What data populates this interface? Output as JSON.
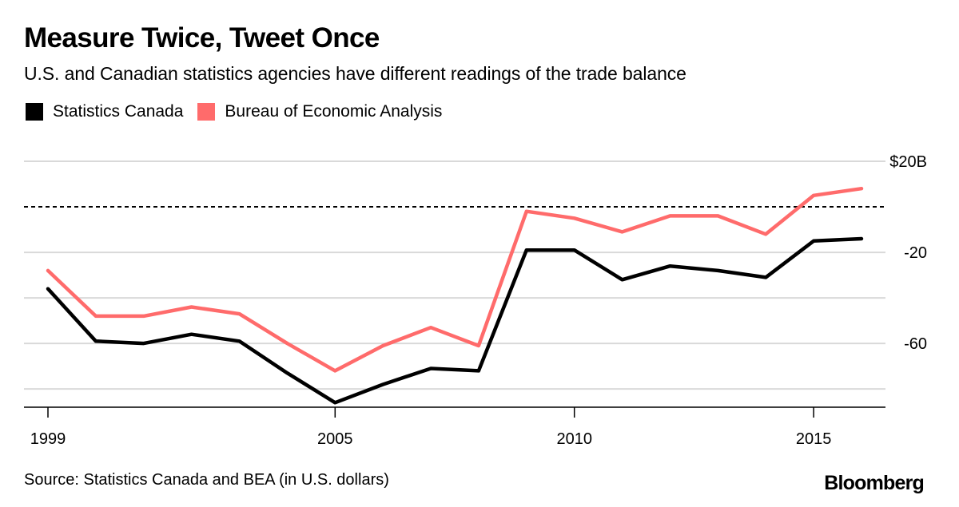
{
  "header": {
    "title": "Measure Twice, Tweet Once",
    "subtitle": "U.S. and Canadian statistics agencies have different readings of the trade balance"
  },
  "legend": [
    {
      "label": "Statistics Canada",
      "color": "#000000"
    },
    {
      "label": "Bureau of Economic Analysis",
      "color": "#ff6b6b"
    }
  ],
  "footer": {
    "source": "Source: Statistics Canada and BEA (in U.S. dollars)",
    "brand": "Bloomberg"
  },
  "chart_data": {
    "type": "line",
    "title": "Measure Twice, Tweet Once",
    "subtitle": "U.S. and Canadian statistics agencies have different readings of the trade balance",
    "xlabel": "",
    "ylabel": "",
    "x": [
      1999,
      2000,
      2001,
      2002,
      2003,
      2004,
      2005,
      2006,
      2007,
      2008,
      2009,
      2010,
      2011,
      2012,
      2013,
      2014,
      2015,
      2016
    ],
    "series": [
      {
        "name": "Statistics Canada",
        "color": "#000000",
        "values": [
          -36,
          -59,
          -60,
          -56,
          -59,
          -73,
          -86,
          -78,
          -71,
          -72,
          -19,
          -19,
          -32,
          -26,
          -28,
          -31,
          -15,
          -14
        ]
      },
      {
        "name": "Bureau of Economic Analysis",
        "color": "#ff6b6b",
        "values": [
          -28,
          -48,
          -48,
          -44,
          -47,
          -60,
          -72,
          -61,
          -53,
          -61,
          -2,
          -5,
          -11,
          -4,
          -4,
          -12,
          5,
          8
        ]
      }
    ],
    "xticks": [
      1999,
      2005,
      2010,
      2015
    ],
    "xtick_labels": [
      "1999",
      "2005",
      "2010",
      "2015"
    ],
    "yticks": [
      20,
      -20,
      -60
    ],
    "ytick_labels": [
      "$20B",
      "-20",
      "-60"
    ],
    "ygrid": [
      20,
      0,
      -20,
      -40,
      -60,
      -80
    ],
    "zero_line": {
      "value": 0,
      "style": "dashed"
    },
    "xlim": [
      1999,
      2016
    ],
    "ylim": [
      -88,
      20
    ],
    "grid": true,
    "legend_position": "top-left",
    "y_axis_position": "right"
  }
}
